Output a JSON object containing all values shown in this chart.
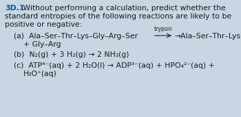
{
  "background_color": "#c8d5e3",
  "text_color": "#1a1a1a",
  "bold_color": "#1a5296",
  "font_size": 7.8,
  "small_font_size": 5.5,
  "fig_width": 3.5,
  "fig_height": 1.71,
  "dpi": 100,
  "title_bold": "3D.1",
  "line1_rest": " Without performing a calculation, predict whether the",
  "line2": "standard entropies of the following reactions are likely to be",
  "line3": "positive or negative:",
  "a_left": "(a)  Ala–Ser–Thr–Lys–Gly–Arg–Ser",
  "a_arrow": "trypsin",
  "a_right": "→Ala–Ser–Thr–Lys",
  "a_line2": "+ Gly–Arg",
  "b_line": "(b)  N₂(g) + 3 H₂(g) → 2 NH₃(g)",
  "c_line1": "(c)  ATP⁴⁻(aq) + 2 H₂O(l) → ADP³⁻(aq) + HPO₄²⁻(aq) +",
  "c_line2": "H₃O⁺(aq)"
}
